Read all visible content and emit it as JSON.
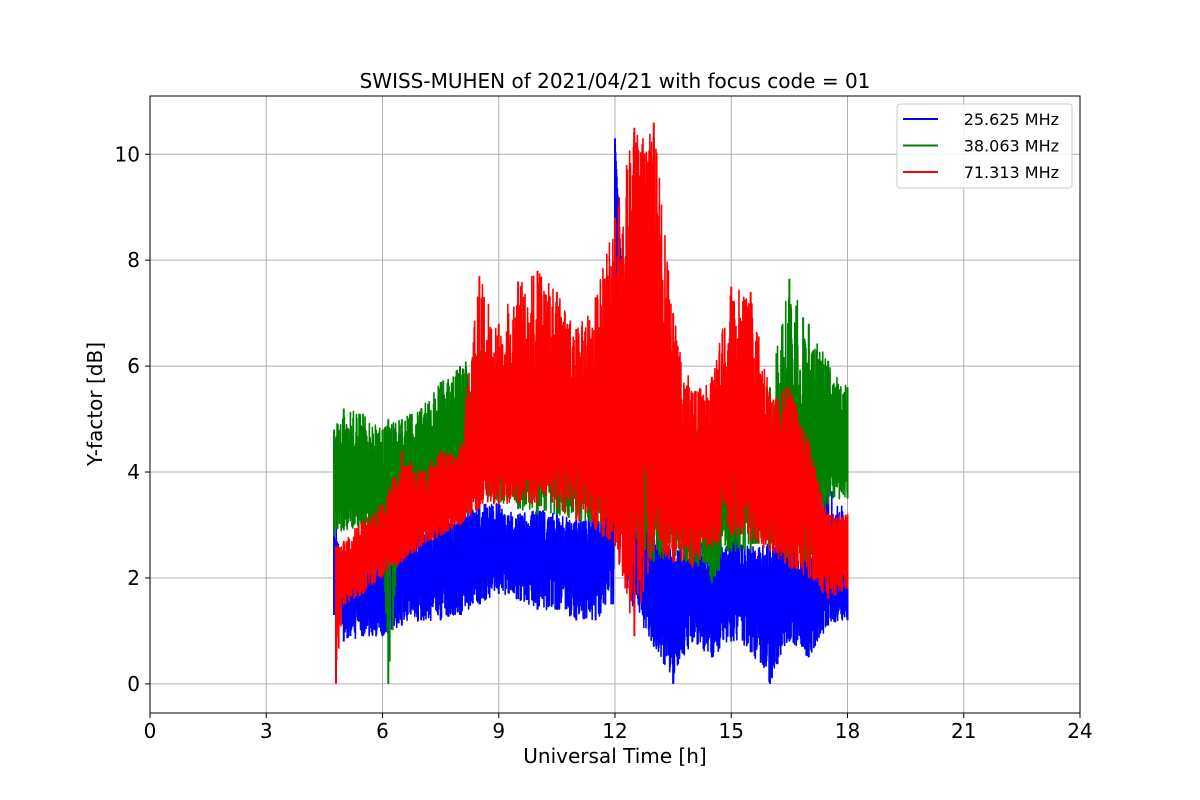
{
  "chart_data": {
    "type": "line",
    "title": "SWISS-MUHEN of 2021/04/21 with focus code = 01",
    "xlabel": "Universal Time [h]",
    "ylabel": "Y-factor [dB]",
    "xlim": [
      0,
      24
    ],
    "ylim": [
      -0.55,
      11.1
    ],
    "xticks": [
      0,
      3,
      6,
      9,
      12,
      15,
      18,
      21,
      24
    ],
    "xtick_labels": [
      "0",
      "3",
      "6",
      "9",
      "12",
      "15",
      "18",
      "21",
      "24"
    ],
    "yticks": [
      0,
      2,
      4,
      6,
      8,
      10
    ],
    "ytick_labels": [
      "0",
      "2",
      "4",
      "6",
      "8",
      "10"
    ],
    "grid": true,
    "legend_position": "top-right",
    "series": [
      {
        "name": "25.625 MHz",
        "color": "#0000ff",
        "x": [
          4.75,
          5.0,
          5.5,
          6.0,
          6.5,
          7.0,
          7.5,
          8.0,
          8.5,
          9.0,
          9.5,
          10.0,
          10.5,
          11.0,
          11.5,
          11.95,
          12.0,
          12.5,
          13.0,
          13.5,
          14.0,
          14.5,
          15.0,
          15.5,
          16.0,
          16.5,
          17.0,
          17.5,
          18.0
        ],
        "y": [
          2.2,
          1.6,
          1.7,
          1.9,
          2.0,
          2.2,
          2.3,
          2.2,
          2.5,
          2.6,
          2.5,
          2.4,
          2.4,
          2.3,
          2.3,
          2.6,
          10.3,
          2.4,
          2.0,
          1.7,
          1.8,
          1.6,
          1.9,
          1.7,
          1.8,
          1.9,
          1.6,
          2.0,
          1.8
        ],
        "y_min": [
          1.3,
          0.8,
          0.9,
          0.9,
          1.1,
          1.2,
          1.2,
          1.3,
          1.5,
          1.7,
          1.6,
          1.4,
          1.4,
          1.2,
          1.2,
          1.5,
          2.6,
          1.3,
          0.7,
          0.0,
          0.8,
          0.5,
          0.8,
          0.6,
          0.0,
          0.8,
          0.5,
          1.1,
          1.2
        ],
        "y_max": [
          3.1,
          2.4,
          2.5,
          2.7,
          2.8,
          3.0,
          3.2,
          3.3,
          3.4,
          3.4,
          3.2,
          3.3,
          3.2,
          3.1,
          3.2,
          3.4,
          10.3,
          3.2,
          2.8,
          2.6,
          2.8,
          2.5,
          2.8,
          2.6,
          2.7,
          2.8,
          2.5,
          3.9,
          3.2
        ]
      },
      {
        "name": "38.063 MHz",
        "color": "#008000",
        "x": [
          4.75,
          5.0,
          5.5,
          6.0,
          6.15,
          6.5,
          7.0,
          7.5,
          8.0,
          8.5,
          9.0,
          9.5,
          10.0,
          10.5,
          11.0,
          11.5,
          12.0,
          12.5,
          13.0,
          13.5,
          14.0,
          14.5,
          15.0,
          15.5,
          16.0,
          16.5,
          17.0,
          17.5,
          18.0
        ],
        "y": [
          3.8,
          3.9,
          3.8,
          3.6,
          3.5,
          3.9,
          4.0,
          4.2,
          4.4,
          4.7,
          4.8,
          4.6,
          4.5,
          4.4,
          4.3,
          4.2,
          4.1,
          3.9,
          3.7,
          3.6,
          3.4,
          3.3,
          3.7,
          3.8,
          3.9,
          4.2,
          3.9,
          4.4,
          4.5
        ],
        "y_min": [
          2.8,
          2.9,
          2.8,
          2.4,
          0.0,
          2.9,
          3.0,
          3.1,
          3.3,
          3.5,
          3.4,
          3.3,
          3.2,
          3.2,
          3.1,
          3.0,
          2.9,
          2.6,
          2.3,
          2.4,
          2.2,
          1.9,
          2.5,
          2.5,
          2.6,
          2.3,
          2.2,
          3.4,
          3.5
        ],
        "y_max": [
          4.8,
          5.2,
          5.1,
          4.8,
          5.0,
          5.0,
          5.2,
          5.7,
          6.0,
          6.3,
          6.1,
          5.9,
          5.7,
          5.6,
          5.5,
          5.4,
          5.2,
          5.1,
          5.0,
          4.9,
          4.8,
          4.9,
          5.0,
          5.2,
          5.6,
          7.65,
          6.8,
          6.1,
          5.6
        ]
      },
      {
        "name": "71.313 MHz",
        "color": "#ff0000",
        "x": [
          4.8,
          5.0,
          5.5,
          6.0,
          6.5,
          7.0,
          7.5,
          8.0,
          8.5,
          9.0,
          9.5,
          10.0,
          10.5,
          11.0,
          11.5,
          12.0,
          12.5,
          13.0,
          13.5,
          14.0,
          14.5,
          15.0,
          15.5,
          16.0,
          16.5,
          17.0,
          17.5,
          18.0
        ],
        "y": [
          1.9,
          2.1,
          2.3,
          2.7,
          3.0,
          3.1,
          3.2,
          3.4,
          4.2,
          4.4,
          4.6,
          4.9,
          5.1,
          4.6,
          4.5,
          4.8,
          6.2,
          5.5,
          4.4,
          3.8,
          3.9,
          4.8,
          4.9,
          3.8,
          3.8,
          3.8,
          2.3,
          2.3
        ],
        "y_min": [
          0.0,
          1.5,
          1.7,
          2.0,
          2.3,
          2.6,
          2.8,
          3.0,
          3.3,
          3.4,
          3.4,
          3.4,
          3.3,
          3.1,
          2.9,
          2.6,
          0.9,
          2.5,
          2.3,
          2.2,
          2.6,
          2.8,
          2.7,
          2.5,
          2.2,
          2.0,
          1.6,
          1.8
        ],
        "y_max": [
          2.6,
          2.7,
          3.1,
          3.4,
          4.4,
          4.0,
          4.4,
          4.4,
          7.7,
          6.8,
          7.6,
          7.8,
          7.4,
          6.7,
          7.3,
          8.8,
          10.5,
          10.6,
          7.0,
          5.5,
          5.8,
          7.5,
          7.4,
          5.5,
          5.6,
          4.6,
          3.2,
          3.2
        ]
      }
    ]
  }
}
